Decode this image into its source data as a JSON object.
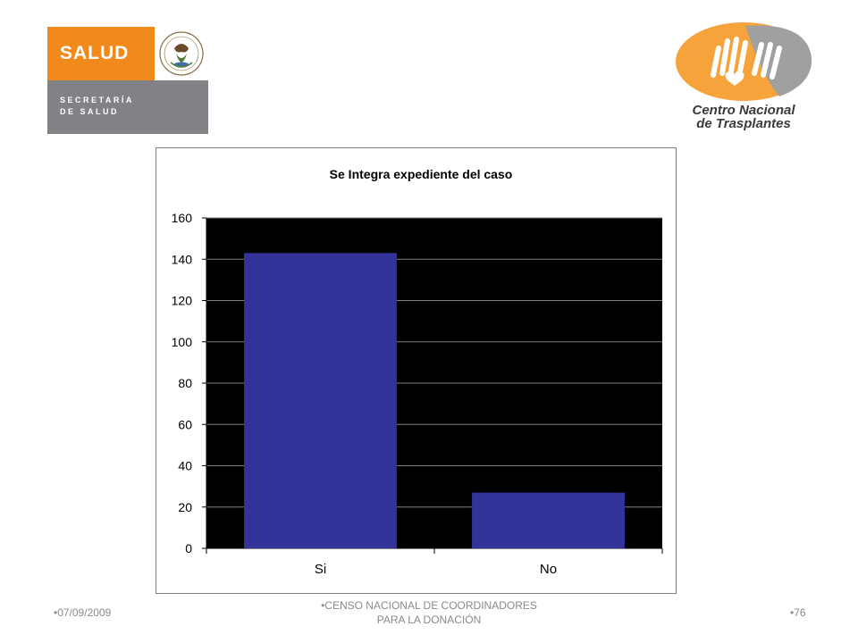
{
  "header": {
    "salud_logo": {
      "brand": "SALUD",
      "line1": "SECRETARÍA",
      "line2": "DE SALUD",
      "seal_text": "ESTADOS UNIDOS MEXICANOS",
      "orange": "#f08a1c",
      "gray": "#808285"
    },
    "cnt_logo": {
      "line1": "Centro Nacional",
      "line2": "de Trasplantes",
      "orange": "#f5a33a",
      "gray": "#a0a0a0"
    }
  },
  "chart_data": {
    "type": "bar",
    "title": "Se Integra expediente del caso",
    "categories": [
      "Si",
      "No"
    ],
    "values": [
      143,
      27
    ],
    "ylim": [
      0,
      160
    ],
    "yticks": [
      0,
      20,
      40,
      60,
      80,
      100,
      120,
      140,
      160
    ],
    "ytick_labels": [
      "0",
      "20",
      "40",
      "60",
      "80",
      "100",
      "120",
      "140",
      "160"
    ],
    "grid": true,
    "legend": "none",
    "plot_background": "#000000",
    "bar_color": "#333399",
    "grid_color": "#808080"
  },
  "footer": {
    "date": "07/09/2009",
    "center_line1": "CENSO NACIONAL DE COORDINADORES",
    "center_line2": "PARA LA DONACIÓN",
    "page": "76",
    "bullet": "•"
  }
}
